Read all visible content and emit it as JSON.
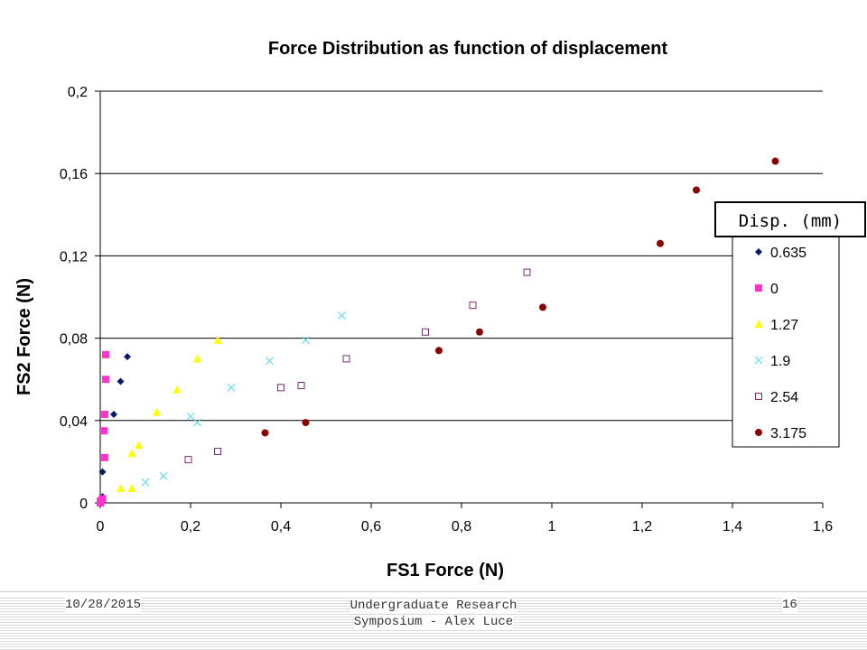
{
  "chart_data": {
    "type": "scatter",
    "title": "Force Distribution as function of displacement",
    "xlabel": "FS1 Force (N)",
    "ylabel": "FS2 Force (N)",
    "xlim": [
      0,
      1.6
    ],
    "ylim": [
      0,
      0.2
    ],
    "xticks": [
      "0",
      "0,2",
      "0,4",
      "0,6",
      "0,8",
      "1",
      "1,2",
      "1,4",
      "1,6"
    ],
    "yticks": [
      "0",
      "0,04",
      "0,08",
      "0,12",
      "0,16",
      "0,2"
    ],
    "grid": "horizontal",
    "legend_title": "Disp. (mm)",
    "legend_position": "right",
    "series": [
      {
        "name": "0.635",
        "marker": "diamond",
        "color": "#0a1a6a",
        "points": [
          [
            0.0,
            0.002
          ],
          [
            0.005,
            0.003
          ],
          [
            0.005,
            0.015
          ],
          [
            0.03,
            0.043
          ],
          [
            0.045,
            0.059
          ],
          [
            0.06,
            0.071
          ]
        ]
      },
      {
        "name": "0",
        "marker": "square",
        "color": "#ff33cc",
        "points": [
          [
            0.0,
            0.0
          ],
          [
            0.002,
            0.001
          ],
          [
            0.005,
            0.002
          ],
          [
            0.008,
            0.035
          ],
          [
            0.01,
            0.022
          ],
          [
            0.01,
            0.043
          ],
          [
            0.012,
            0.06
          ],
          [
            0.012,
            0.072
          ]
        ]
      },
      {
        "name": "1.27",
        "marker": "triangle",
        "color": "#ffff00",
        "points": [
          [
            0.045,
            0.007
          ],
          [
            0.07,
            0.007
          ],
          [
            0.07,
            0.024
          ],
          [
            0.085,
            0.028
          ],
          [
            0.125,
            0.044
          ],
          [
            0.17,
            0.055
          ],
          [
            0.215,
            0.07
          ],
          [
            0.26,
            0.079
          ]
        ]
      },
      {
        "name": "1.9",
        "marker": "x",
        "color": "#66ddee",
        "points": [
          [
            0.1,
            0.01
          ],
          [
            0.14,
            0.013
          ],
          [
            0.2,
            0.042
          ],
          [
            0.215,
            0.039
          ],
          [
            0.29,
            0.056
          ],
          [
            0.375,
            0.069
          ],
          [
            0.455,
            0.079
          ],
          [
            0.535,
            0.091
          ]
        ]
      },
      {
        "name": "2.54",
        "marker": "open-square",
        "color": "#7a2a7a",
        "points": [
          [
            0.195,
            0.021
          ],
          [
            0.26,
            0.025
          ],
          [
            0.4,
            0.056
          ],
          [
            0.445,
            0.057
          ],
          [
            0.545,
            0.07
          ],
          [
            0.72,
            0.083
          ],
          [
            0.825,
            0.096
          ],
          [
            0.945,
            0.112
          ]
        ]
      },
      {
        "name": "3.175",
        "marker": "circle",
        "color": "#8b0000",
        "points": [
          [
            0.365,
            0.034
          ],
          [
            0.455,
            0.039
          ],
          [
            0.75,
            0.074
          ],
          [
            0.84,
            0.083
          ],
          [
            0.98,
            0.095
          ],
          [
            1.24,
            0.126
          ],
          [
            1.32,
            0.152
          ],
          [
            1.495,
            0.166
          ]
        ]
      }
    ]
  },
  "footer": {
    "date": "10/28/2015",
    "center_line1": "Undergraduate Research",
    "center_line2": "Symposium - Alex Luce",
    "page": "16"
  }
}
